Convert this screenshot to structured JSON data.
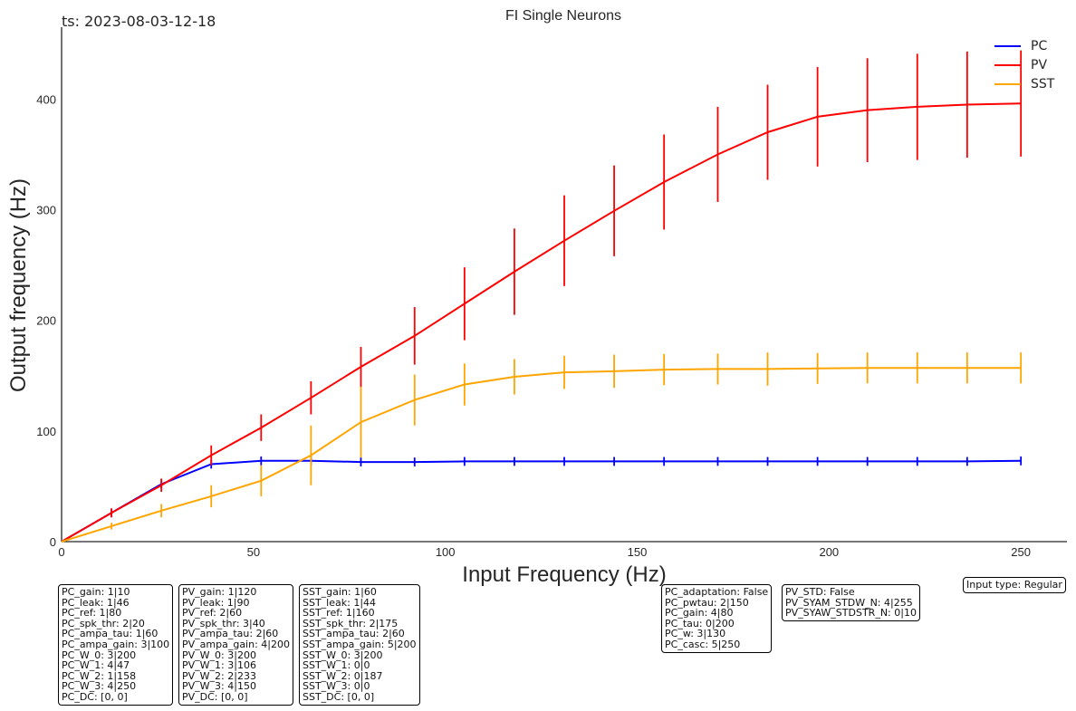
{
  "timestamp": "ts: 2023-08-03-12-18",
  "chart_data": {
    "type": "line",
    "title": "FI Single Neurons",
    "xlabel": "Input Frequency (Hz)",
    "ylabel": "Output frequency (Hz)",
    "xlim": [
      0,
      262
    ],
    "ylim": [
      0,
      465
    ],
    "xticks": [
      0,
      50,
      100,
      150,
      200,
      250
    ],
    "yticks": [
      0,
      100,
      200,
      300,
      400
    ],
    "grid": false,
    "legend_position": "top-right",
    "x": [
      0,
      13,
      26,
      39,
      52,
      65,
      78,
      92,
      105,
      118,
      131,
      144,
      157,
      171,
      184,
      197,
      210,
      223,
      236,
      250
    ],
    "series": [
      {
        "name": "PC",
        "color": "#0000ff",
        "values": [
          0,
          26,
          52,
          70,
          73,
          73,
          72,
          72,
          72.5,
          72.5,
          72.5,
          72.5,
          72.5,
          72.5,
          72.5,
          72.5,
          72.5,
          72.5,
          72.5,
          73
        ],
        "errors": [
          0,
          4,
          4,
          4,
          4,
          4,
          4,
          4,
          4,
          4,
          4,
          4,
          4,
          4,
          4,
          4,
          4,
          4,
          4,
          4
        ]
      },
      {
        "name": "PV",
        "color": "#ff0000",
        "values": [
          0,
          26,
          51,
          78,
          103,
          130,
          158,
          186,
          215,
          244,
          272,
          299,
          325,
          350,
          370,
          384,
          390,
          393,
          395,
          396
        ],
        "errors": [
          0,
          4,
          6,
          9,
          12,
          15,
          18,
          26,
          33,
          39,
          41,
          41,
          43,
          43,
          43,
          45,
          47,
          48,
          48,
          48
        ]
      },
      {
        "name": "SST",
        "color": "#ffa500",
        "values": [
          0,
          14,
          28,
          41,
          55,
          78,
          108,
          128,
          142,
          149,
          153,
          154,
          155.5,
          156,
          156,
          156.5,
          157,
          157,
          157,
          157
        ],
        "errors": [
          0,
          3,
          6,
          10,
          14,
          27,
          32,
          23,
          19,
          16,
          15,
          15,
          14,
          14,
          15,
          14,
          14,
          14,
          14,
          14
        ]
      }
    ]
  },
  "param_boxes": [
    {
      "lines": [
        "PC_gain: 1|10",
        "PC_leak: 1|46",
        "PC_ref: 1|80",
        "PC_spk_thr: 2|20",
        "PC_ampa_tau: 1|60",
        "PC_ampa_gain: 3|100",
        "PC_W_0: 3|200",
        "PC_W_1: 4|47",
        "PC_W_2: 1|158",
        "PC_W_3: 4|250",
        "PC_DC: [0, 0]"
      ]
    },
    {
      "lines": [
        "PV_gain: 1|120",
        "PV_leak: 1|90",
        "PV_ref: 2|60",
        "PV_spk_thr: 3|40",
        "PV_ampa_tau: 2|60",
        "PV_ampa_gain: 4|200",
        "PV_W_0: 3|200",
        "PV_W_1: 3|106",
        "PV_W_2: 2|233",
        "PV_W_3: 4|150",
        "PV_DC: [0, 0]"
      ]
    },
    {
      "lines": [
        "SST_gain: 1|60",
        "SST_leak: 1|44",
        "SST_ref: 1|160",
        "SST_spk_thr: 2|175",
        "SST_ampa_tau: 2|60",
        "SST_ampa_gain: 5|200",
        "SST_W_0: 3|200",
        "SST_W_1: 0|0",
        "SST_W_2: 0|187",
        "SST_W_3: 0|0",
        "SST_DC: [0, 0]"
      ]
    },
    {
      "lines": [
        "PC_adaptation: False",
        "PC_pwtau: 2|150",
        "PC_gain: 4|80",
        "PC_tau: 0|200",
        "PC_w: 3|130",
        "PC_casc: 5|250"
      ]
    },
    {
      "lines": [
        "PV_STD: False",
        "PV_SYAM_STDW_N: 4|255",
        "PV_SYAW_STDSTR_N: 0|10"
      ]
    },
    {
      "lines": [
        "Input type: Regular"
      ]
    }
  ]
}
